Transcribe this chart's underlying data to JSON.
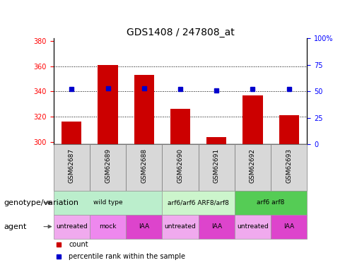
{
  "title": "GDS1408 / 247808_at",
  "samples": [
    "GSM62687",
    "GSM62689",
    "GSM62688",
    "GSM62690",
    "GSM62691",
    "GSM62692",
    "GSM62693"
  ],
  "bar_values": [
    316,
    361,
    353,
    326,
    304,
    337,
    321
  ],
  "bar_base": 298,
  "percentile_values": [
    52,
    53,
    53,
    52,
    51,
    52,
    52
  ],
  "bar_color": "#cc0000",
  "percentile_color": "#0000cc",
  "ylim_left": [
    298,
    382
  ],
  "ylim_right": [
    0,
    100
  ],
  "yticks_left": [
    300,
    320,
    340,
    360,
    380
  ],
  "yticks_right": [
    0,
    25,
    50,
    75,
    100
  ],
  "ytick_labels_right": [
    "0",
    "25",
    "50",
    "75",
    "100%"
  ],
  "grid_values": [
    320,
    340,
    360
  ],
  "genotype_groups": [
    {
      "label": "wild type",
      "span": [
        0,
        3
      ],
      "color": "#bbeecc",
      "border": "#999999"
    },
    {
      "label": "arf6/arf6 ARF8/arf8",
      "span": [
        3,
        5
      ],
      "color": "#ccf5cc",
      "border": "#999999"
    },
    {
      "label": "arf6 arf8",
      "span": [
        5,
        7
      ],
      "color": "#55cc55",
      "border": "#999999"
    }
  ],
  "agent_groups": [
    {
      "label": "untreated",
      "span": [
        0,
        1
      ],
      "color": "#f0aaee",
      "border": "#999999"
    },
    {
      "label": "mock",
      "span": [
        1,
        2
      ],
      "color": "#ee88ee",
      "border": "#999999"
    },
    {
      "label": "IAA",
      "span": [
        2,
        3
      ],
      "color": "#dd44cc",
      "border": "#999999"
    },
    {
      "label": "untreated",
      "span": [
        3,
        4
      ],
      "color": "#f0aaee",
      "border": "#999999"
    },
    {
      "label": "IAA",
      "span": [
        4,
        5
      ],
      "color": "#dd44cc",
      "border": "#999999"
    },
    {
      "label": "untreated",
      "span": [
        5,
        6
      ],
      "color": "#f0aaee",
      "border": "#999999"
    },
    {
      "label": "IAA",
      "span": [
        6,
        7
      ],
      "color": "#dd44cc",
      "border": "#999999"
    }
  ],
  "legend_items": [
    {
      "label": "count",
      "color": "#cc0000"
    },
    {
      "label": "percentile rank within the sample",
      "color": "#0000cc"
    }
  ],
  "label_genotype": "genotype/variation",
  "label_agent": "agent",
  "bar_width": 0.55,
  "title_fontsize": 10,
  "tick_fontsize": 7,
  "annotation_fontsize": 7,
  "label_fontsize": 8
}
